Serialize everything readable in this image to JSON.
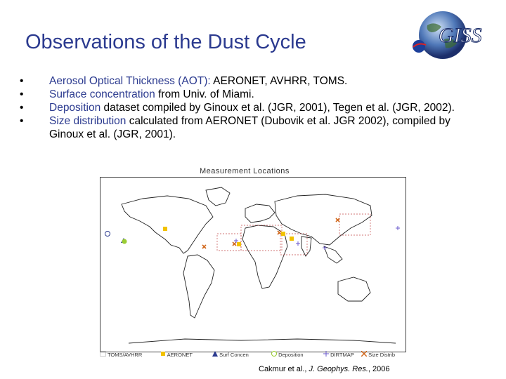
{
  "title": "Observations of the Dust Cycle",
  "logo": {
    "text": "GISS"
  },
  "bullets": [
    {
      "marker": "•",
      "highlight": "Aerosol Optical Thickness (AOT):",
      "rest": " AERONET, AVHRR, TOMS."
    },
    {
      "marker": "•",
      "highlight": "Surface concentration",
      "rest": " from Univ. of Miami."
    },
    {
      "marker": "•",
      "highlight": "Deposition",
      "rest": " dataset compiled by Ginoux et al. (JGR, 2001), Tegen et al. (JGR, 2002)."
    },
    {
      "marker": "•",
      "highlight": "Size distribution",
      "rest": " calculated from AERONET (Dubovik et al. JGR 2002), compiled by Ginoux et al. (JGR, 2001)."
    }
  ],
  "map": {
    "title": "Measurement Locations",
    "legend": [
      {
        "label": "TOMS/AVHRR",
        "color": "#999999",
        "icon": "dotted-box-icon"
      },
      {
        "label": "AERONET",
        "color": "#f2c200",
        "icon": "square-icon"
      },
      {
        "label": "Surf Concen",
        "color": "#2b3a8f",
        "icon": "triangle-icon"
      },
      {
        "label": "Deposition",
        "color": "#9acd32",
        "icon": "circle-icon"
      },
      {
        "label": "DIRTMAP",
        "color": "#6a5acd",
        "icon": "plus-icon"
      },
      {
        "label": "Size Distrib",
        "color": "#d2691e",
        "icon": "cross-icon"
      }
    ]
  },
  "citation": {
    "authors": "Cakmur et al., ",
    "journal": "J. Geophys. Res.",
    "year": ", 2006"
  }
}
